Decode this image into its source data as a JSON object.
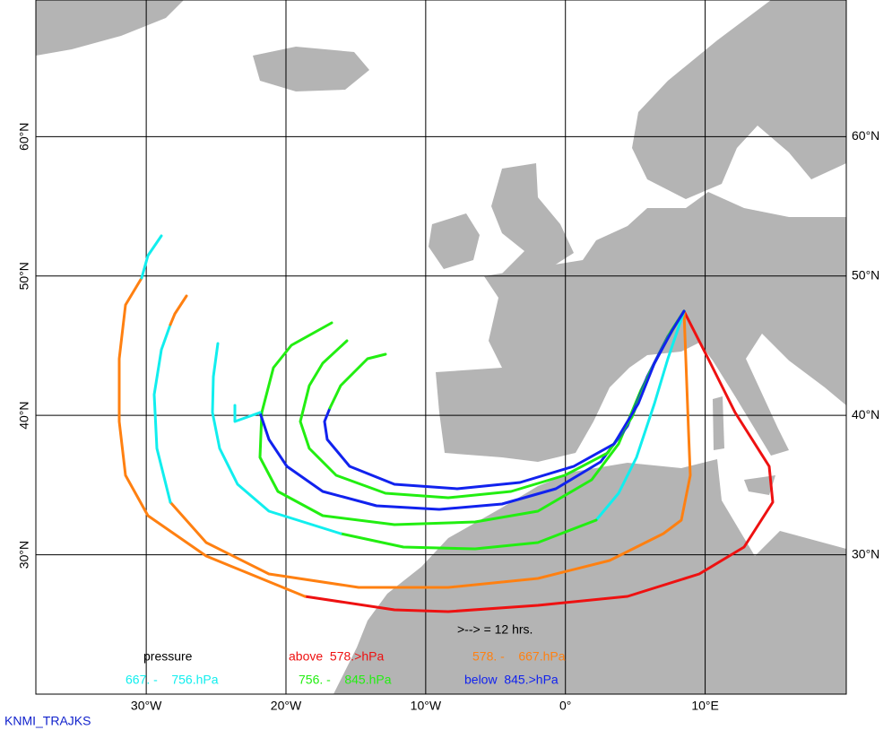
{
  "map": {
    "xlim": [
      -37.9,
      20.1
    ],
    "ylim": [
      20.0,
      69.8
    ],
    "xticks": [
      {
        "value": -30,
        "label": "30°W"
      },
      {
        "value": -20,
        "label": "20°W"
      },
      {
        "value": -10,
        "label": "10°W"
      },
      {
        "value": 0,
        "label": "0°"
      },
      {
        "value": 10,
        "label": "10°E"
      }
    ],
    "yticks": [
      {
        "value": 60,
        "label": "60°N"
      },
      {
        "value": 50,
        "label": "50°N"
      },
      {
        "value": 40,
        "label": "40°N"
      },
      {
        "value": 30,
        "label": "30°N"
      }
    ]
  },
  "legend": {
    "title": "pressure",
    "items": [
      {
        "label": "above  578.>hPa",
        "color": "#ee1111"
      },
      {
        "label": "578. -    667.hPa",
        "color": "#ff8011"
      },
      {
        "label": "667. -    756.hPa",
        "color": "#11eeee"
      },
      {
        "label": "756. -    845.hPa",
        "color": "#22ee11"
      },
      {
        "label": "below  845.>hPa",
        "color": "#1122ee"
      }
    ]
  },
  "time_step_note": ">--> = 12 hrs.",
  "credit": "KNMI_TRAJKS"
}
